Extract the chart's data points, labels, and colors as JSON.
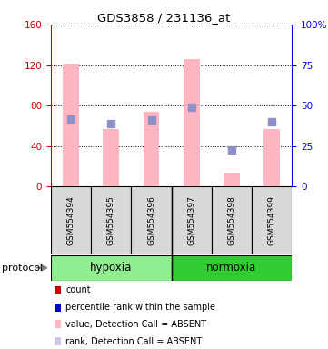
{
  "title": "GDS3858 / 231136_at",
  "samples": [
    "GSM554394",
    "GSM554395",
    "GSM554396",
    "GSM554397",
    "GSM554398",
    "GSM554399"
  ],
  "pink_bar_heights": [
    121,
    57,
    74,
    126,
    14,
    57
  ],
  "blue_square_y": [
    67,
    62,
    66,
    78,
    36,
    64
  ],
  "groups": [
    {
      "label": "hypoxia",
      "start": 0,
      "end": 3,
      "color": "#90EE90"
    },
    {
      "label": "normoxia",
      "start": 3,
      "end": 6,
      "color": "#32CD32"
    }
  ],
  "ylim_left": [
    0,
    160
  ],
  "ylim_right": [
    0,
    100
  ],
  "yticks_left": [
    0,
    40,
    80,
    120,
    160
  ],
  "yticks_right": [
    0,
    25,
    50,
    75,
    100
  ],
  "yticklabels_right": [
    "0",
    "25",
    "50",
    "75",
    "100%"
  ],
  "pink_bar_color": "#FFB6C1",
  "blue_square_color": "#9090C8",
  "left_axis_color": "#cc0000",
  "right_axis_color": "blue",
  "sample_box_color": "#d8d8d8",
  "legend_items": [
    {
      "color": "#cc0000",
      "label": "count"
    },
    {
      "color": "#0000cc",
      "label": "percentile rank within the sample"
    },
    {
      "color": "#FFB6C1",
      "label": "value, Detection Call = ABSENT"
    },
    {
      "color": "#c8c8e8",
      "label": "rank, Detection Call = ABSENT"
    }
  ]
}
